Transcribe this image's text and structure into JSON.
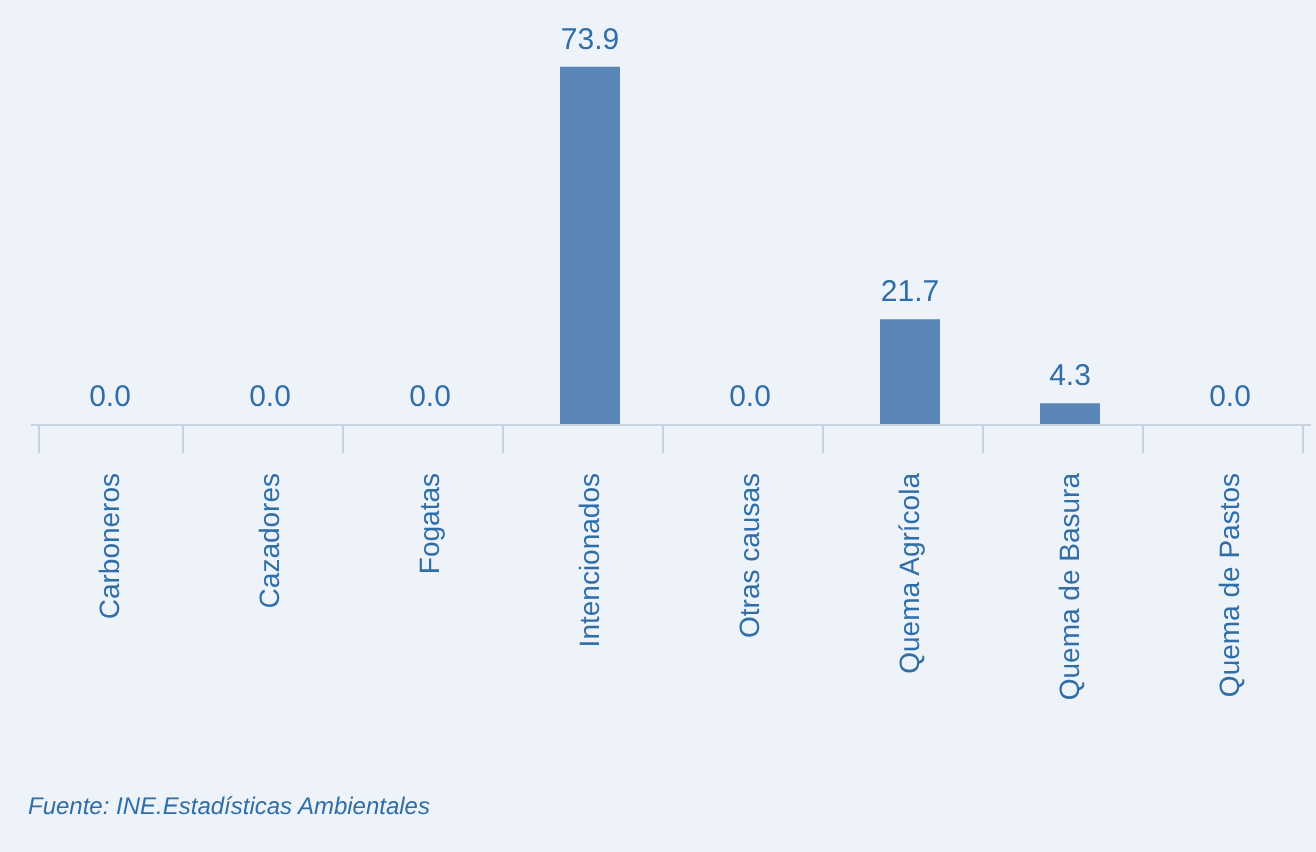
{
  "chart_data": {
    "type": "bar",
    "categories": [
      "Carboneros",
      "Cazadores",
      "Fogatas",
      "Intencionados",
      "Otras causas",
      "Quema Agrícola",
      "Quema de Basura",
      "Quema de Pastos"
    ],
    "values": [
      0.0,
      0.0,
      0.0,
      73.9,
      0.0,
      21.7,
      4.3,
      0.0
    ],
    "color": "#5b87b8",
    "value_labels": [
      "0.0",
      "0.0",
      "0.0",
      "73.9",
      "0.0",
      "21.7",
      "4.3",
      "0.0"
    ],
    "annotations": [
      "Fuente: INE.Estadísticas Ambientales"
    ]
  }
}
